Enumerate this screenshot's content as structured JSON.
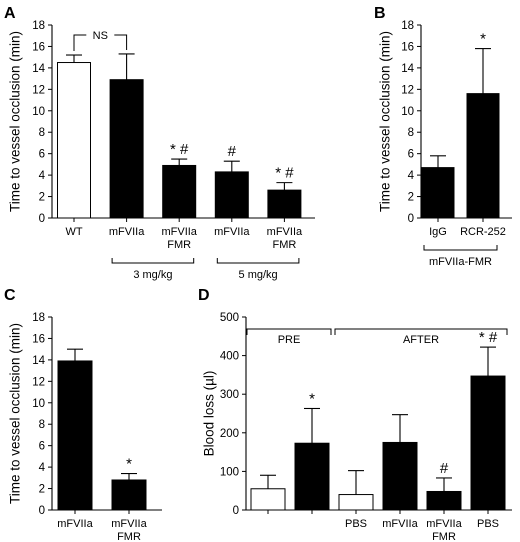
{
  "chart_data": [
    {
      "panel": "A",
      "type": "bar",
      "ylabel": "Time to vessel occlusion (min)",
      "ylim": [
        0,
        18
      ],
      "yticks": [
        0,
        2,
        4,
        6,
        8,
        10,
        12,
        14,
        16,
        18
      ],
      "categories": [
        {
          "label": [
            "WT"
          ],
          "value": 14.5,
          "err": 0.7,
          "fill": "#ffffff",
          "annotation": ""
        },
        {
          "label": [
            "mFVIIa"
          ],
          "value": 12.9,
          "err": 2.4,
          "fill": "#000000",
          "annotation": ""
        },
        {
          "label": [
            "mFVIIa",
            "FMR"
          ],
          "value": 4.9,
          "err": 0.6,
          "fill": "#000000",
          "annotation": "* #"
        },
        {
          "label": [
            "mFVIIa"
          ],
          "value": 4.3,
          "err": 1.0,
          "fill": "#000000",
          "annotation": "#"
        },
        {
          "label": [
            "mFVIIa",
            "FMR"
          ],
          "value": 2.6,
          "err": 0.7,
          "fill": "#000000",
          "annotation": "* #"
        }
      ],
      "comparison": {
        "text": "NS",
        "from": 0,
        "to": 1
      },
      "groups": [
        {
          "label": "3 mg/kg",
          "from": 1,
          "to": 2
        },
        {
          "label": "5 mg/kg",
          "from": 3,
          "to": 4
        }
      ]
    },
    {
      "panel": "B",
      "type": "bar",
      "ylabel": "Time to vessel occlusion (min)",
      "ylim": [
        0,
        18
      ],
      "yticks": [
        0,
        2,
        4,
        6,
        8,
        10,
        12,
        14,
        16,
        18
      ],
      "categories": [
        {
          "label": [
            "IgG"
          ],
          "value": 4.7,
          "err": 1.1,
          "fill": "#000000",
          "annotation": ""
        },
        {
          "label": [
            "RCR-252"
          ],
          "value": 11.6,
          "err": 4.2,
          "fill": "#000000",
          "annotation": "*"
        }
      ],
      "groups": [
        {
          "label": "mFVIIa-FMR",
          "from": 0,
          "to": 1
        }
      ]
    },
    {
      "panel": "C",
      "type": "bar",
      "ylabel": "Time to vessel occlusion (min)",
      "ylim": [
        0,
        18
      ],
      "yticks": [
        0,
        2,
        4,
        6,
        8,
        10,
        12,
        14,
        16,
        18
      ],
      "categories": [
        {
          "label": [
            "mFVIIa"
          ],
          "value": 13.9,
          "err": 1.1,
          "fill": "#000000",
          "annotation": ""
        },
        {
          "label": [
            "mFVIIa",
            "FMR"
          ],
          "value": 2.8,
          "err": 0.6,
          "fill": "#000000",
          "annotation": "*"
        }
      ]
    },
    {
      "panel": "D",
      "type": "bar",
      "ylabel": "Blood loss (µl)",
      "ylim": [
        0,
        500
      ],
      "yticks": [
        0,
        100,
        200,
        300,
        400,
        500
      ],
      "categories": [
        {
          "label": [
            ""
          ],
          "value": 55,
          "err": 35,
          "fill": "#ffffff",
          "annotation": ""
        },
        {
          "label": [
            ""
          ],
          "value": 173,
          "err": 90,
          "fill": "#000000",
          "annotation": "*"
        },
        {
          "label": [
            "PBS"
          ],
          "value": 40,
          "err": 62,
          "fill": "#ffffff",
          "annotation": ""
        },
        {
          "label": [
            "mFVIIa"
          ],
          "value": 175,
          "err": 72,
          "fill": "#000000",
          "annotation": ""
        },
        {
          "label": [
            "mFVIIa",
            "FMR"
          ],
          "value": 48,
          "err": 35,
          "fill": "#000000",
          "annotation": "#"
        },
        {
          "label": [
            "PBS"
          ],
          "value": 347,
          "err": 75,
          "fill": "#000000",
          "annotation": "* #"
        }
      ],
      "top_groups": [
        {
          "label": "PRE",
          "from": 0,
          "to": 1
        },
        {
          "label": "AFTER",
          "from": 2,
          "to": 5
        }
      ]
    }
  ]
}
